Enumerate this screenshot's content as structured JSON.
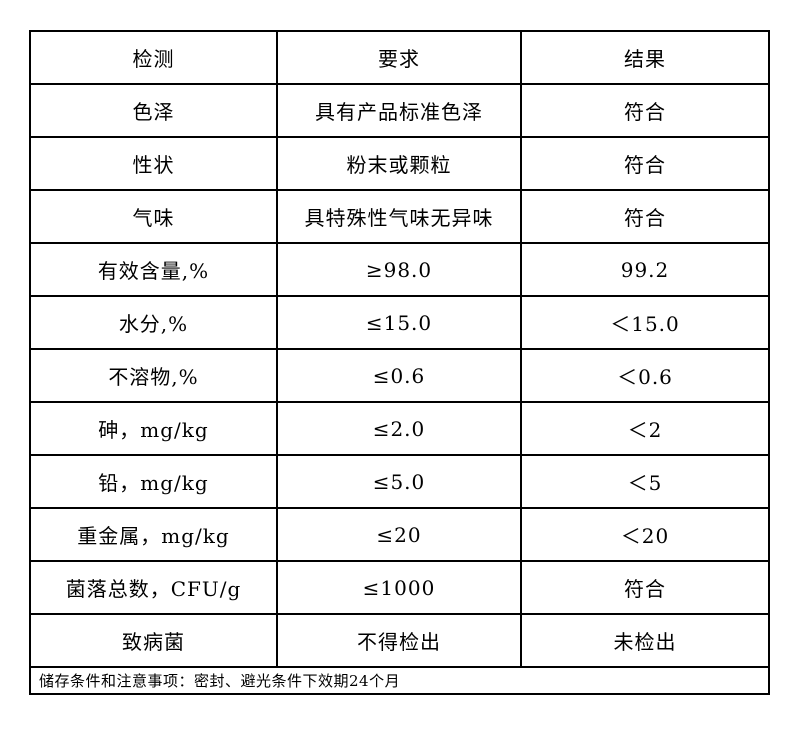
{
  "table": {
    "headers": [
      "检测",
      "要求",
      "结果"
    ],
    "rows": [
      [
        "色泽",
        "具有产品标准色泽",
        "符合"
      ],
      [
        "性状",
        "粉末或颗粒",
        "符合"
      ],
      [
        "气味",
        "具特殊性气味无异味",
        "符合"
      ],
      [
        "有效含量,%",
        "≥98.0",
        "99.2"
      ],
      [
        "水分,%",
        "≤15.0",
        "＜15.0"
      ],
      [
        "不溶物,%",
        "≤0.6",
        "＜0.6"
      ],
      [
        "砷，mg/kg",
        "≤2.0",
        "＜2"
      ],
      [
        "铅，mg/kg",
        "≤5.0",
        "＜5"
      ],
      [
        "重金属，mg/kg",
        "≤20",
        "＜20"
      ],
      [
        "菌落总数，CFU/g",
        "≤1000",
        "符合"
      ],
      [
        "致病菌",
        "不得检出",
        "未检出"
      ]
    ],
    "footer": "储存条件和注意事项：密封、避光条件下效期24个月"
  }
}
